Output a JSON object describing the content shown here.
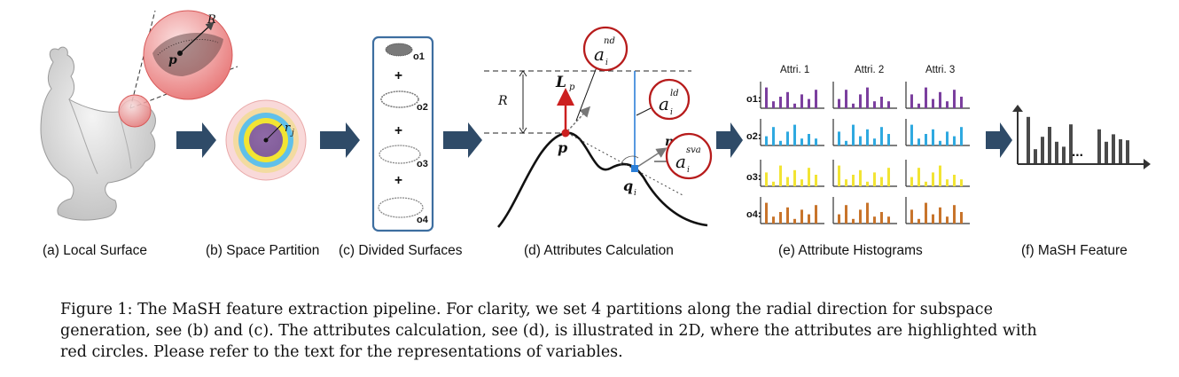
{
  "figure": {
    "panel_labels": {
      "a": "(a) Local Surface",
      "b": "(b) Space Partition",
      "c": "(c) Divided Surfaces",
      "d": "(d) Attributes Calculation",
      "e": "(e) Attribute Histograms",
      "f": "(f) MaSH Feature"
    },
    "panel_a": {
      "radius_label": "R",
      "point_label": "p"
    },
    "panel_b": {
      "radius_label": "r",
      "radius_sub": "j"
    },
    "panel_c": {
      "parts": [
        "o1",
        "o2",
        "o3",
        "o4"
      ],
      "plus": "+"
    },
    "panel_d": {
      "r_label": "R",
      "L_label": "L",
      "L_sub": "p",
      "p_label": "p",
      "q_label": "q",
      "q_sub": "i",
      "n_label": "n",
      "n_sub": "i",
      "a_main": "a",
      "a_sub": "i",
      "a_nd_sup": "nd",
      "a_ld_sup": "ld",
      "a_sva_sup": "sva"
    },
    "panel_e": {
      "columns": [
        "Attri. 1",
        "Attri. 2",
        "Attri. 3"
      ],
      "rows": [
        "o1:",
        "o2:",
        "o3:",
        "o4:"
      ],
      "row_colors": [
        "#7b3f9e",
        "#2fa9e0",
        "#f2e433",
        "#c8742b"
      ]
    },
    "panel_f": {
      "ellipsis": "..."
    },
    "colors": {
      "arrow": "#2f4b68",
      "red": "#cc1f1f",
      "blue": "#2b7fd8",
      "frame": "#3d6ea0"
    }
  },
  "caption": {
    "lines": [
      "Figure 1:  The MaSH feature extraction pipeline.  For clarity, we set 4 partitions along the radial direction for subspace",
      "generation, see (b) and (c). The attributes calculation, see (d), is illustrated in 2D, where the attributes are highlighted with",
      "red circles. Please refer to the text for the representations of variables."
    ]
  }
}
